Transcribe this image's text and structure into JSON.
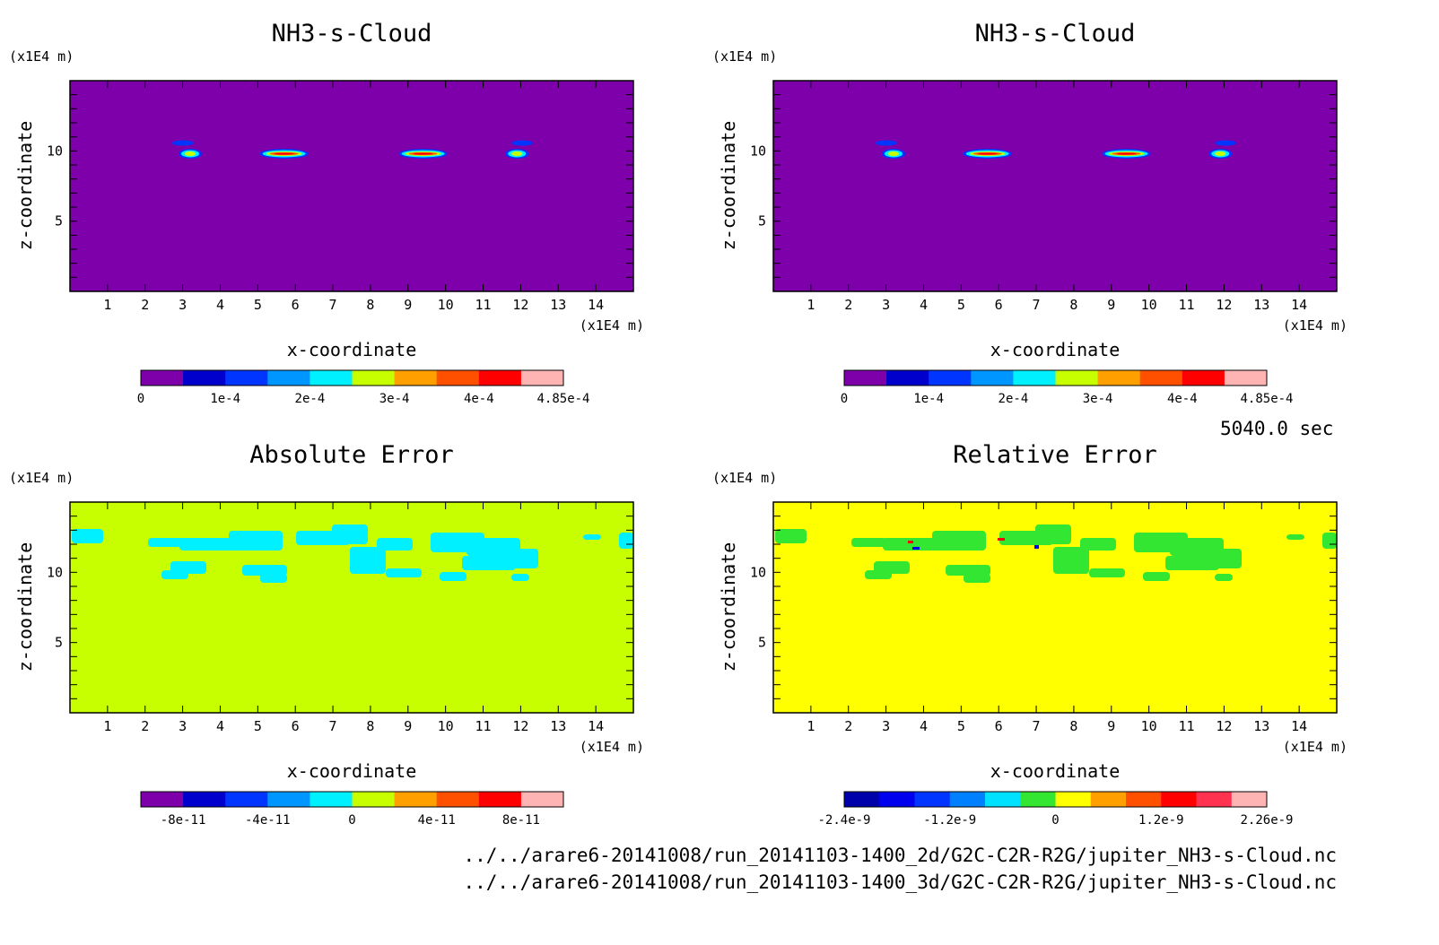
{
  "x_unit": "(x1E4 m)",
  "z_unit": "(x1E4 m)",
  "time_label": "5040.0 sec",
  "file_paths": [
    "../../arare6-20141008/run_20141103-1400_2d/G2C-C2R-R2G/jupiter_NH3-s-Cloud.nc",
    "../../arare6-20141008/run_20141103-1400_3d/G2C-C2R-R2G/jupiter_NH3-s-Cloud.nc"
  ],
  "chart_data": [
    {
      "type": "heatmap",
      "title": "NH3-s-Cloud",
      "xlabel": "x-coordinate",
      "ylabel": "z-coordinate",
      "xlim": [
        0,
        15
      ],
      "ylim": [
        0,
        15
      ],
      "x_ticks": [
        "1",
        "2",
        "3",
        "4",
        "5",
        "6",
        "7",
        "8",
        "9",
        "10",
        "11",
        "12",
        "13",
        "14"
      ],
      "z_ticks": [
        "5",
        "10"
      ],
      "background_level": 0,
      "features": [
        {
          "x": 3.2,
          "z": 9.8,
          "peak": 0.00025
        },
        {
          "x": 5.7,
          "z": 9.8,
          "peak": 0.000485
        },
        {
          "x": 9.4,
          "z": 9.8,
          "peak": 0.000485
        },
        {
          "x": 11.9,
          "z": 9.8,
          "peak": 0.00025
        }
      ],
      "colorbar": {
        "colors": [
          "#7d00aa",
          "#0000cc",
          "#0035ff",
          "#0096ff",
          "#00f0ff",
          "#c8ff00",
          "#ffa000",
          "#ff5000",
          "#ff0000",
          "#ffb4b4"
        ],
        "labels": [
          "0",
          "1e-4",
          "2e-4",
          "3e-4",
          "4e-4",
          "4.85e-4"
        ]
      }
    },
    {
      "type": "heatmap",
      "title": "NH3-s-Cloud",
      "xlabel": "x-coordinate",
      "ylabel": "z-coordinate",
      "xlim": [
        0,
        15
      ],
      "ylim": [
        0,
        15
      ],
      "x_ticks": [
        "1",
        "2",
        "3",
        "4",
        "5",
        "6",
        "7",
        "8",
        "9",
        "10",
        "11",
        "12",
        "13",
        "14"
      ],
      "z_ticks": [
        "5",
        "10"
      ],
      "background_level": 0,
      "features": [
        {
          "x": 3.2,
          "z": 9.8,
          "peak": 0.00025
        },
        {
          "x": 5.7,
          "z": 9.8,
          "peak": 0.000485
        },
        {
          "x": 9.4,
          "z": 9.8,
          "peak": 0.000485
        },
        {
          "x": 11.9,
          "z": 9.8,
          "peak": 0.00025
        }
      ],
      "colorbar": {
        "colors": [
          "#7d00aa",
          "#0000cc",
          "#0035ff",
          "#0096ff",
          "#00f0ff",
          "#c8ff00",
          "#ffa000",
          "#ff5000",
          "#ff0000",
          "#ffb4b4"
        ],
        "labels": [
          "0",
          "1e-4",
          "2e-4",
          "3e-4",
          "4e-4",
          "4.85e-4"
        ]
      }
    },
    {
      "type": "heatmap",
      "title": "Absolute Error",
      "xlabel": "x-coordinate",
      "ylabel": "z-coordinate",
      "xlim": [
        0,
        15
      ],
      "ylim": [
        0,
        15
      ],
      "x_ticks": [
        "1",
        "2",
        "3",
        "4",
        "5",
        "6",
        "7",
        "8",
        "9",
        "10",
        "11",
        "12",
        "13",
        "14"
      ],
      "z_ticks": [
        "5",
        "10"
      ],
      "background_level": 0,
      "patch_level": -1e-11,
      "colorbar": {
        "colors": [
          "#7d00aa",
          "#0000cc",
          "#0035ff",
          "#0096ff",
          "#00f0ff",
          "#c8ff00",
          "#ffa000",
          "#ff5000",
          "#ff0000",
          "#ffb4b4"
        ],
        "labels": [
          "-8e-11",
          "-4e-11",
          "0",
          "4e-11",
          "8e-11"
        ]
      }
    },
    {
      "type": "heatmap",
      "title": "Relative Error",
      "xlabel": "x-coordinate",
      "ylabel": "z-coordinate",
      "xlim": [
        0,
        15
      ],
      "ylim": [
        0,
        15
      ],
      "x_ticks": [
        "1",
        "2",
        "3",
        "4",
        "5",
        "6",
        "7",
        "8",
        "9",
        "10",
        "11",
        "12",
        "13",
        "14"
      ],
      "z_ticks": [
        "5",
        "10"
      ],
      "background_level": 0,
      "patch_level": -1e-10,
      "colorbar": {
        "colors": [
          "#0000aa",
          "#0000ee",
          "#0035ff",
          "#0080ff",
          "#00e0ff",
          "#32e632",
          "#ffff00",
          "#ffa000",
          "#ff5000",
          "#ff0000",
          "#ff3250",
          "#ffb4b4"
        ],
        "labels": [
          "-2.4e-9",
          "-1.2e-9",
          "0",
          "1.2e-9",
          "2.26e-9"
        ]
      }
    }
  ]
}
